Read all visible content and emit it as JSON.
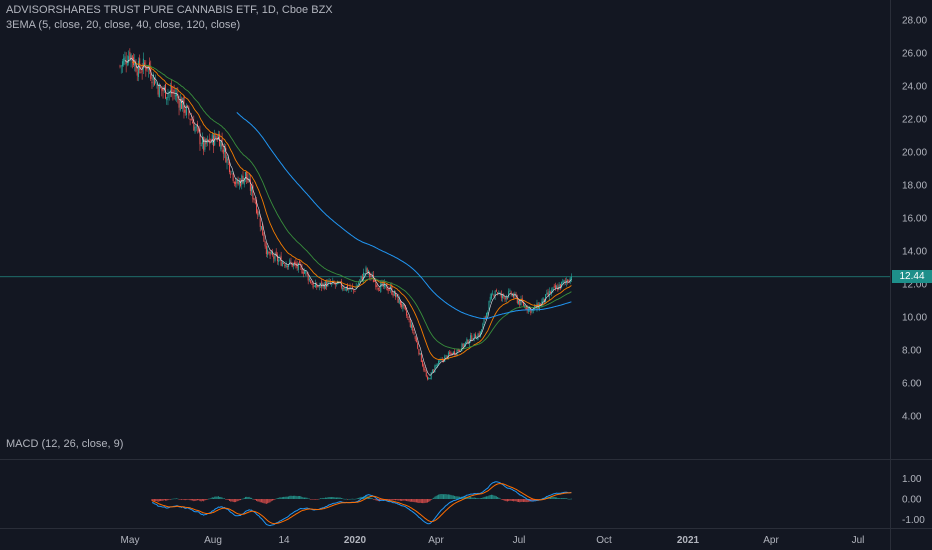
{
  "header": {
    "title": "ADVISORSHARES TRUST PURE CANNABIS ETF, 1D, Cboe BZX",
    "study": "3EMA (5, close, 20, close, 40, close, 120, close)",
    "macd_label": "MACD (12, 26, close, 9)"
  },
  "last_price": "12.44",
  "colors": {
    "background": "#131722",
    "up": "#26a69a",
    "down": "#ef5350",
    "ema5": "#e0e3eb",
    "ema20": "#f57c00",
    "ema40": "#388e3c",
    "ema120": "#2196f3",
    "macd": "#2196f3",
    "signal": "#ff6d00",
    "price_line": "#26a69a"
  },
  "chart_data": [
    {
      "type": "candlestick",
      "y_axis_ticks": [
        "28.00",
        "26.00",
        "24.00",
        "22.00",
        "20.00",
        "18.00",
        "16.00",
        "14.00",
        "12.00",
        "10.00",
        "8.00",
        "6.00",
        "4.00"
      ],
      "ylim": [
        4,
        28
      ],
      "x_axis_ticks": [
        "May",
        "Aug",
        "14",
        "2020",
        "Apr",
        "Jul",
        "Oct",
        "2021",
        "Apr",
        "Jul"
      ],
      "price_anchors": [
        {
          "d": 0,
          "p": 25.2
        },
        {
          "d": 8,
          "p": 26.0
        },
        {
          "d": 15,
          "p": 25.0
        },
        {
          "d": 22,
          "p": 25.3
        },
        {
          "d": 32,
          "p": 23.8
        },
        {
          "d": 45,
          "p": 23.5
        },
        {
          "d": 58,
          "p": 22.0
        },
        {
          "d": 68,
          "p": 20.3
        },
        {
          "d": 80,
          "p": 21.0
        },
        {
          "d": 95,
          "p": 18.0
        },
        {
          "d": 102,
          "p": 18.6
        },
        {
          "d": 110,
          "p": 17.0
        },
        {
          "d": 120,
          "p": 13.8
        },
        {
          "d": 130,
          "p": 13.4
        },
        {
          "d": 140,
          "p": 13.2
        },
        {
          "d": 150,
          "p": 12.8
        },
        {
          "d": 158,
          "p": 11.8
        },
        {
          "d": 168,
          "p": 12.0
        },
        {
          "d": 180,
          "p": 11.9
        },
        {
          "d": 190,
          "p": 11.6
        },
        {
          "d": 200,
          "p": 12.8
        },
        {
          "d": 210,
          "p": 11.9
        },
        {
          "d": 220,
          "p": 11.7
        },
        {
          "d": 230,
          "p": 10.6
        },
        {
          "d": 238,
          "p": 9.2
        },
        {
          "d": 245,
          "p": 7.4
        },
        {
          "d": 250,
          "p": 6.1
        },
        {
          "d": 256,
          "p": 7.0
        },
        {
          "d": 265,
          "p": 7.6
        },
        {
          "d": 275,
          "p": 8.0
        },
        {
          "d": 285,
          "p": 8.7
        },
        {
          "d": 293,
          "p": 9.0
        },
        {
          "d": 300,
          "p": 10.8
        },
        {
          "d": 305,
          "p": 11.7
        },
        {
          "d": 310,
          "p": 11.2
        },
        {
          "d": 318,
          "p": 11.4
        },
        {
          "d": 325,
          "p": 10.9
        },
        {
          "d": 335,
          "p": 10.4
        },
        {
          "d": 342,
          "p": 10.8
        },
        {
          "d": 350,
          "p": 11.5
        },
        {
          "d": 358,
          "p": 11.9
        },
        {
          "d": 367,
          "p": 12.44
        }
      ],
      "ema120_start_day": 95,
      "macd_y_ticks": [
        "1.00",
        "0.00",
        "-1.00"
      ],
      "macd_ylim": [
        -1.35,
        1.35
      ]
    }
  ]
}
